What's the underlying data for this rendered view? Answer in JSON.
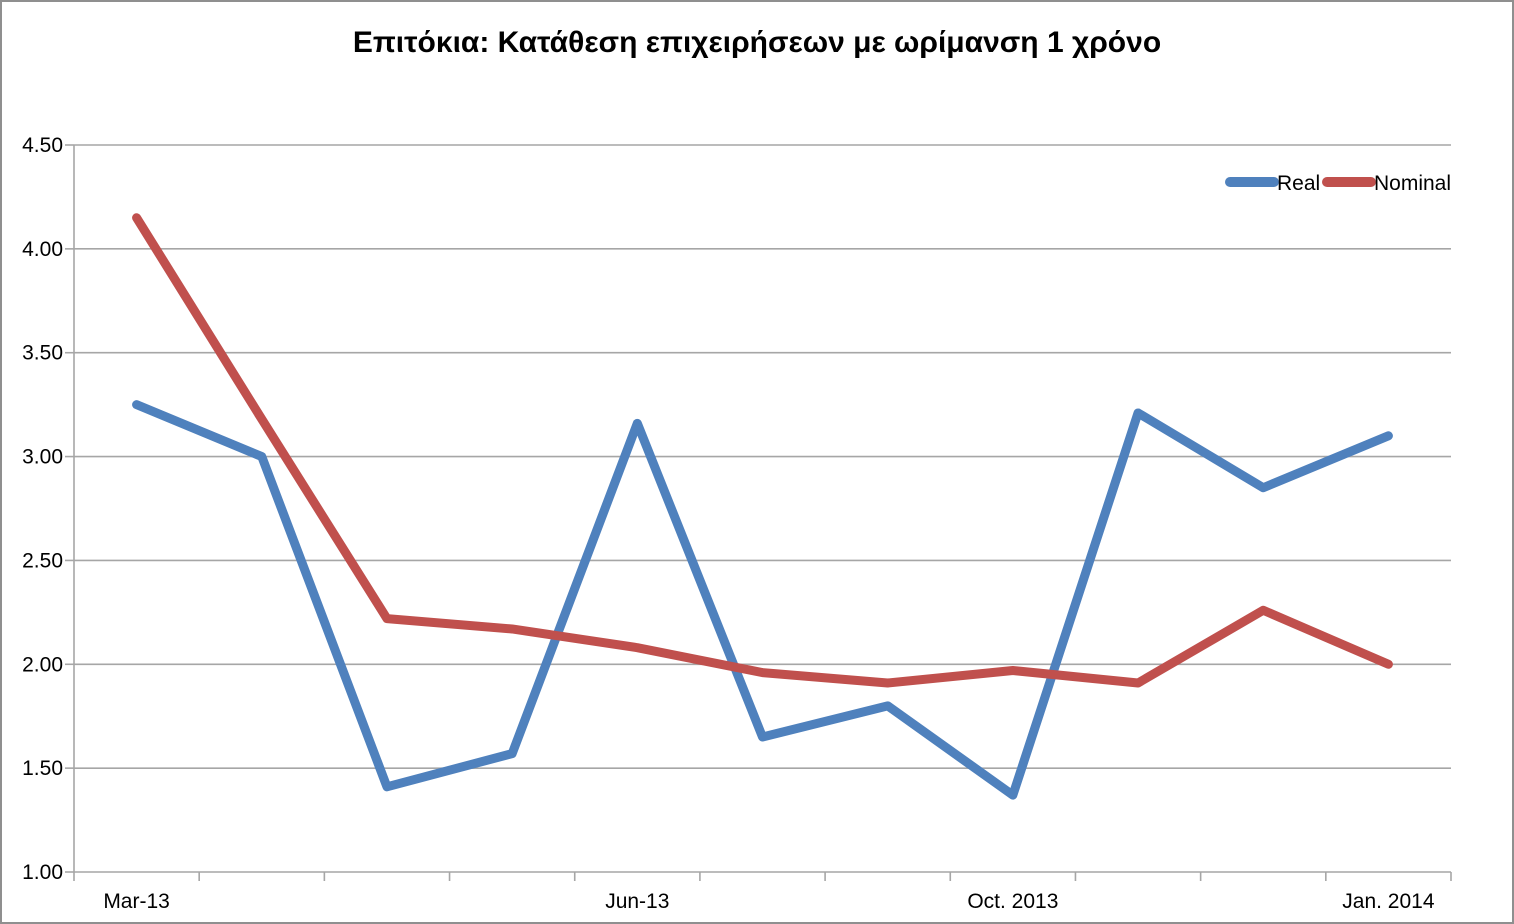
{
  "chart_data": {
    "type": "line",
    "title": "Επιτόκια: Κατάθεση επιχειρήσεων με ωρίμανση 1 χρόνο",
    "xlabel": "",
    "ylabel": "",
    "ylim": [
      1.0,
      4.5
    ],
    "grid": true,
    "legend_position": "top-right",
    "y_ticks": [
      {
        "value": 4.5,
        "label": "4.50"
      },
      {
        "value": 4.0,
        "label": "4.00"
      },
      {
        "value": 3.5,
        "label": "3.50"
      },
      {
        "value": 3.0,
        "label": "3.00"
      },
      {
        "value": 2.5,
        "label": "2.50"
      },
      {
        "value": 2.0,
        "label": "2.00"
      },
      {
        "value": 1.5,
        "label": "1.50"
      },
      {
        "value": 1.0,
        "label": "1.00"
      }
    ],
    "n_points": 11,
    "x_tick_labels": [
      {
        "index": 0,
        "label": "Mar-13"
      },
      {
        "index": 4,
        "label": "Jun-13"
      },
      {
        "index": 7,
        "label": "Oct. 2013"
      },
      {
        "index": 10,
        "label": "Jan. 2014"
      }
    ],
    "series": [
      {
        "name": "Real",
        "color": "#4F81BD",
        "values": [
          3.25,
          3.0,
          1.41,
          1.57,
          3.16,
          1.65,
          1.8,
          1.37,
          3.21,
          2.85,
          3.1
        ]
      },
      {
        "name": "Nominal",
        "color": "#C0504D",
        "values": [
          4.15,
          3.18,
          2.22,
          2.17,
          2.08,
          1.96,
          1.91,
          1.97,
          1.91,
          2.26,
          2.0
        ]
      }
    ]
  },
  "colors": {
    "background": "#ffffff",
    "gridline": "#a6a6a6",
    "axis": "#a6a6a6",
    "text": "#000000",
    "frame_border": "#8f8f8f",
    "real": "#4F81BD",
    "nominal": "#C0504D"
  }
}
